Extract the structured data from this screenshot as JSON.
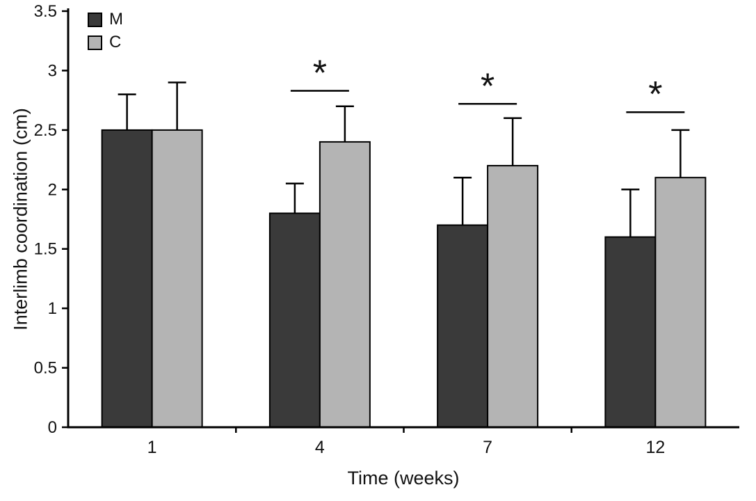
{
  "figure": {
    "background": "#ffffff",
    "ylabel": "Interlimb coordination (cm)",
    "xlabel": "Time (weeks)"
  },
  "legend": {
    "items": [
      {
        "label": "M",
        "color": "#3a3a3a"
      },
      {
        "label": "C",
        "color": "#b4b4b4"
      }
    ]
  },
  "chart_data": {
    "type": "bar",
    "title": "",
    "xlabel": "Time (weeks)",
    "ylabel": "Interlimb coordination (cm)",
    "categories": [
      "1",
      "4",
      "7",
      "12"
    ],
    "series": [
      {
        "name": "M",
        "color": "#3a3a3a",
        "values": [
          2.5,
          1.8,
          1.7,
          1.6
        ],
        "errors": [
          0.3,
          0.25,
          0.4,
          0.4
        ]
      },
      {
        "name": "C",
        "color": "#b4b4b4",
        "values": [
          2.5,
          2.4,
          2.2,
          2.1
        ],
        "errors": [
          0.4,
          0.3,
          0.4,
          0.4
        ]
      }
    ],
    "ylim": [
      0,
      3.5
    ],
    "yticks": [
      0,
      0.5,
      1,
      1.5,
      2,
      2.5,
      3,
      3.5
    ],
    "grid": false,
    "legend_position": "top-left",
    "error_bars": "upper-only",
    "significance": [
      {
        "category": "4",
        "label": "*",
        "line_y": 2.83
      },
      {
        "category": "7",
        "label": "*",
        "line_y": 2.72
      },
      {
        "category": "12",
        "label": "*",
        "line_y": 2.65
      }
    ]
  }
}
